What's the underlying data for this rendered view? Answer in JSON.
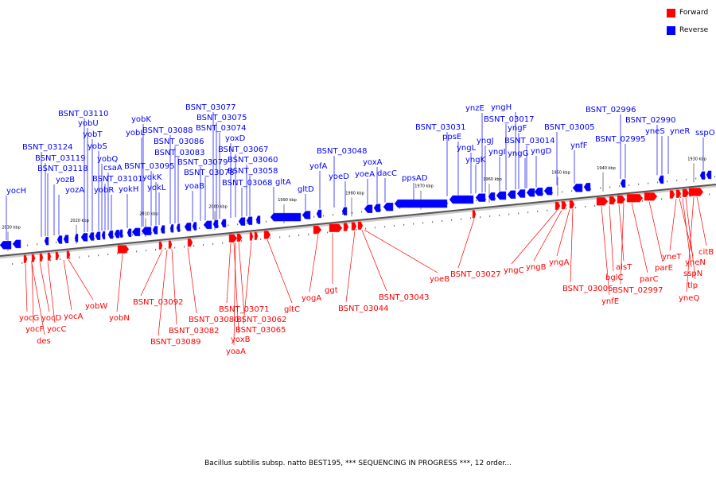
{
  "legend": {
    "forward_label": "Forward",
    "reverse_label": "Reverse",
    "forward_color": "#ff0000",
    "reverse_color": "#0000ff"
  },
  "caption": "Bacillus subtilis subsp. natto BEST195, *** SEQUENCING IN PROGRESS ***, 12 order...",
  "axis": {
    "ticks": [
      "2030 kbp",
      "2020 kbp",
      "2010 kbp",
      "2000 kbp",
      "1990 kbp",
      "1980 kbp",
      "1970 kbp",
      "1960 kbp",
      "1950 kbp",
      "1940 kbp",
      "1930 kbp"
    ]
  },
  "genes_reverse": [
    "yocH",
    "BSNT_03124",
    "BSNT_03119",
    "BSNT_03118",
    "yozB",
    "yozA",
    "BSNT_03110",
    "yobU",
    "yobT",
    "yobS",
    "yobQ",
    "csaA",
    "BSNT_03101",
    "yobR",
    "yokH",
    "yobL",
    "yobK",
    "BSNT_03095",
    "yokK",
    "yokL",
    "BSNT_03088",
    "BSNT_03086",
    "BSNT_03083",
    "yoaB",
    "BSNT_03079",
    "BSNT_03078",
    "BSNT_03077",
    "BSNT_03075",
    "BSNT_03074",
    "yoxD",
    "BSNT_03067",
    "BSNT_03068",
    "BSNT_03060",
    "BSNT_03058",
    "gltA",
    "gltD",
    "yofA",
    "BSNT_03048",
    "yoeD",
    "yoeA",
    "yoxA",
    "dacC",
    "ppsAD",
    "BSNT_03031",
    "ppsE",
    "yngL",
    "yngK",
    "ynzE",
    "yngJ",
    "yngI",
    "BSNT_03017",
    "yngH",
    "yngF",
    "yngG",
    "BSNT_03014",
    "yngD",
    "BSNT_03005",
    "ynfF",
    "BSNT_02996",
    "BSNT_02995",
    "BSNT_02990",
    "yneS",
    "yneR",
    "sspO"
  ],
  "genes_forward": [
    "yocG",
    "yocF",
    "des",
    "yocD",
    "yocC",
    "yocA",
    "yobW",
    "yobN",
    "BSNT_03092",
    "BSNT_03089",
    "BSNT_03082",
    "BSNT_03080",
    "BSNT_03071",
    "yoxB",
    "yoaA",
    "BSNT_03062",
    "BSNT_03065",
    "gltC",
    "yogA",
    "ggt",
    "BSNT_03044",
    "BSNT_03043",
    "yoeB",
    "BSNT_03027",
    "yngC",
    "yngB",
    "yngA",
    "BSNT_03006",
    "ynfE",
    "bglC",
    "alsT",
    "BSNT_02997",
    "parC",
    "parE",
    "yneT",
    "yneN",
    "sspN",
    "tlp",
    "yneQ",
    "citB"
  ]
}
